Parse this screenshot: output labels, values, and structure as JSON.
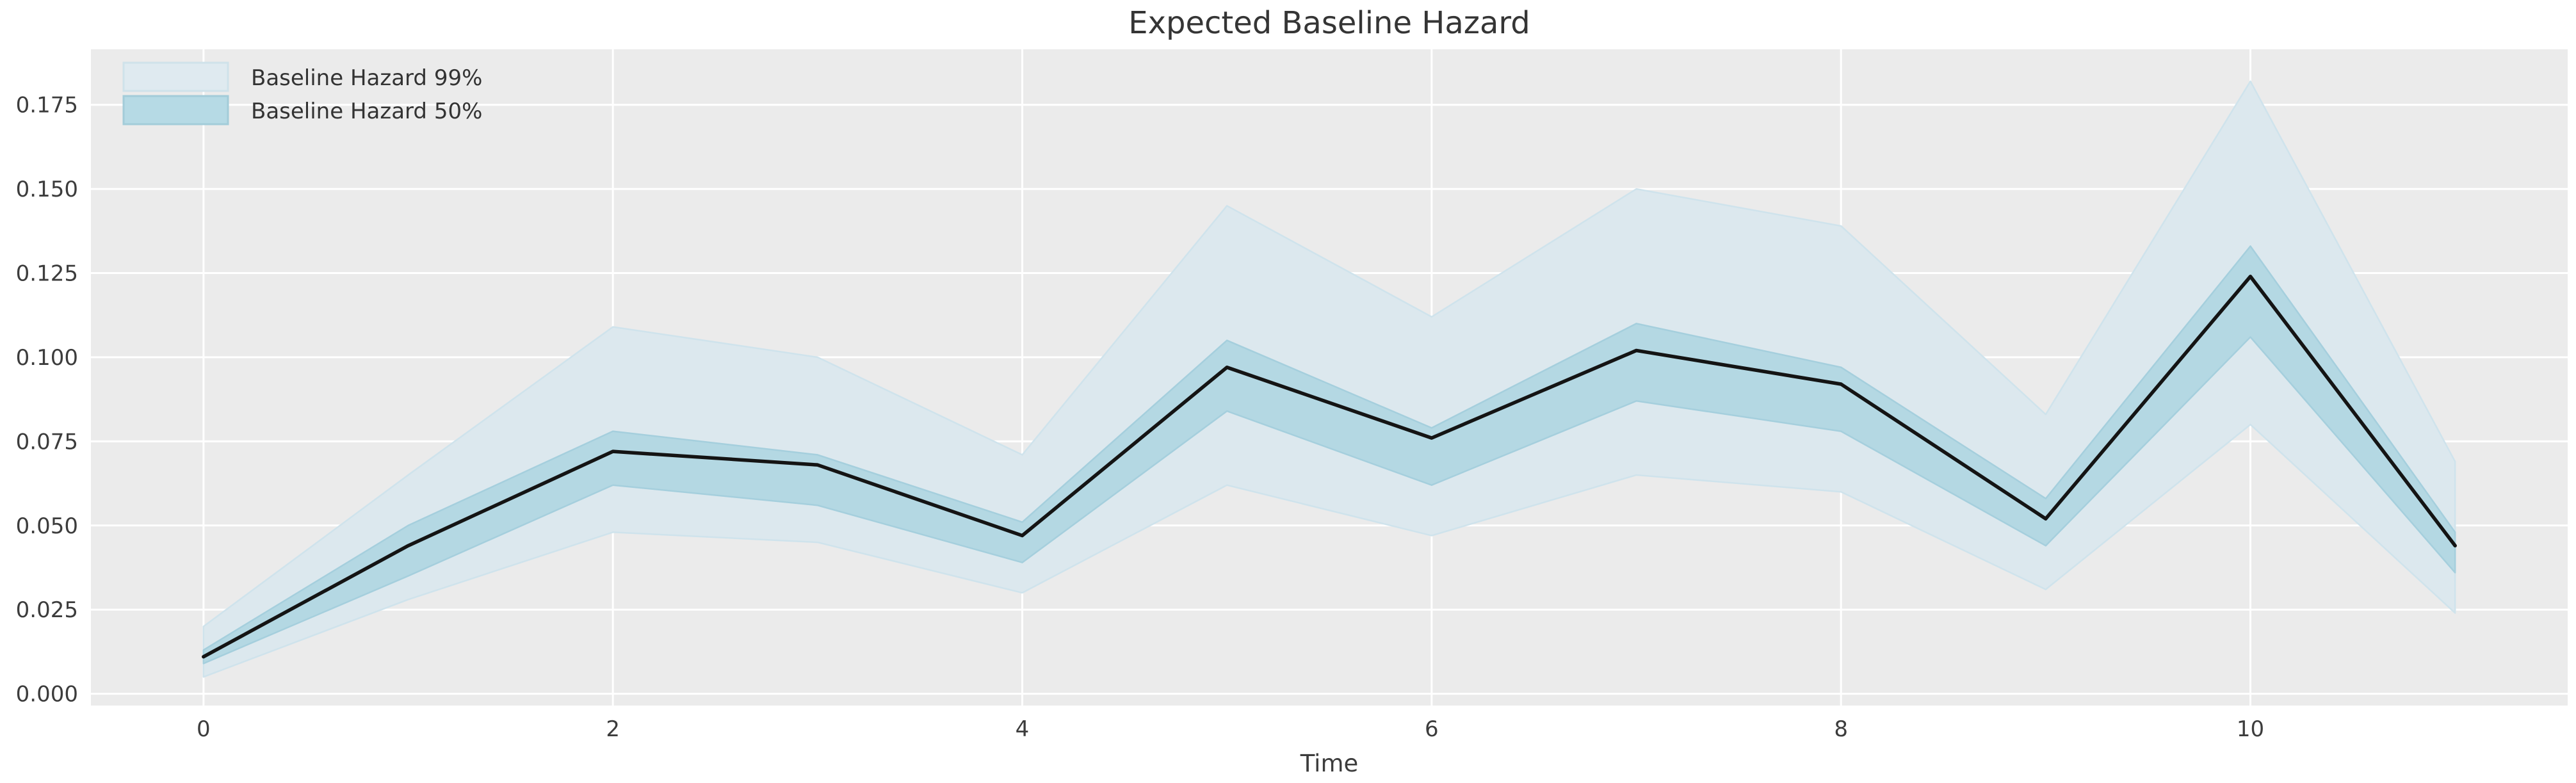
{
  "chart_data": {
    "type": "line",
    "title": "Expected Baseline Hazard",
    "xlabel": "Time",
    "ylabel": "",
    "x": [
      0,
      1,
      2,
      3,
      4,
      5,
      6,
      7,
      8,
      9,
      10,
      11
    ],
    "series": [
      {
        "name": "Baseline Hazard 99%",
        "kind": "band",
        "fill": "#dce8ee",
        "edge": "#cfe3ec",
        "lower": [
          0.005,
          0.028,
          0.048,
          0.045,
          0.03,
          0.062,
          0.047,
          0.065,
          0.06,
          0.031,
          0.08,
          0.024
        ],
        "upper": [
          0.02,
          0.065,
          0.109,
          0.1,
          0.071,
          0.145,
          0.112,
          0.15,
          0.139,
          0.083,
          0.182,
          0.069
        ]
      },
      {
        "name": "Baseline Hazard 50%",
        "kind": "band",
        "fill": "#b4d8e3",
        "edge": "#a5cfdd",
        "lower": [
          0.009,
          0.035,
          0.062,
          0.056,
          0.039,
          0.084,
          0.062,
          0.087,
          0.078,
          0.044,
          0.106,
          0.036
        ],
        "upper": [
          0.013,
          0.05,
          0.078,
          0.071,
          0.051,
          0.105,
          0.079,
          0.11,
          0.097,
          0.058,
          0.133,
          0.048
        ]
      },
      {
        "name": "Expected baseline hazard",
        "kind": "line",
        "color": "#141414",
        "values": [
          0.011,
          0.044,
          0.072,
          0.068,
          0.047,
          0.097,
          0.076,
          0.102,
          0.092,
          0.052,
          0.124,
          0.044
        ]
      }
    ],
    "xlim": [
      -0.55,
      11.55
    ],
    "ylim": [
      -0.0035,
      0.1915
    ],
    "xticks": [
      0,
      2,
      4,
      6,
      8,
      10
    ],
    "yticks": [
      0.0,
      0.025,
      0.05,
      0.075,
      0.1,
      0.125,
      0.15,
      0.175
    ],
    "ytick_format_decimals": 3,
    "grid": true,
    "grid_color": "#ffffff",
    "plot_bg": "#ebebeb",
    "legend_position": "upper-left"
  },
  "legend": {
    "items": [
      {
        "label": "Baseline Hazard 99%",
        "color": "#dfeaf0",
        "border": "#cfe2ea"
      },
      {
        "label": "Baseline Hazard 50%",
        "color": "#b6dae5",
        "border": "#a3ccd9"
      }
    ]
  }
}
